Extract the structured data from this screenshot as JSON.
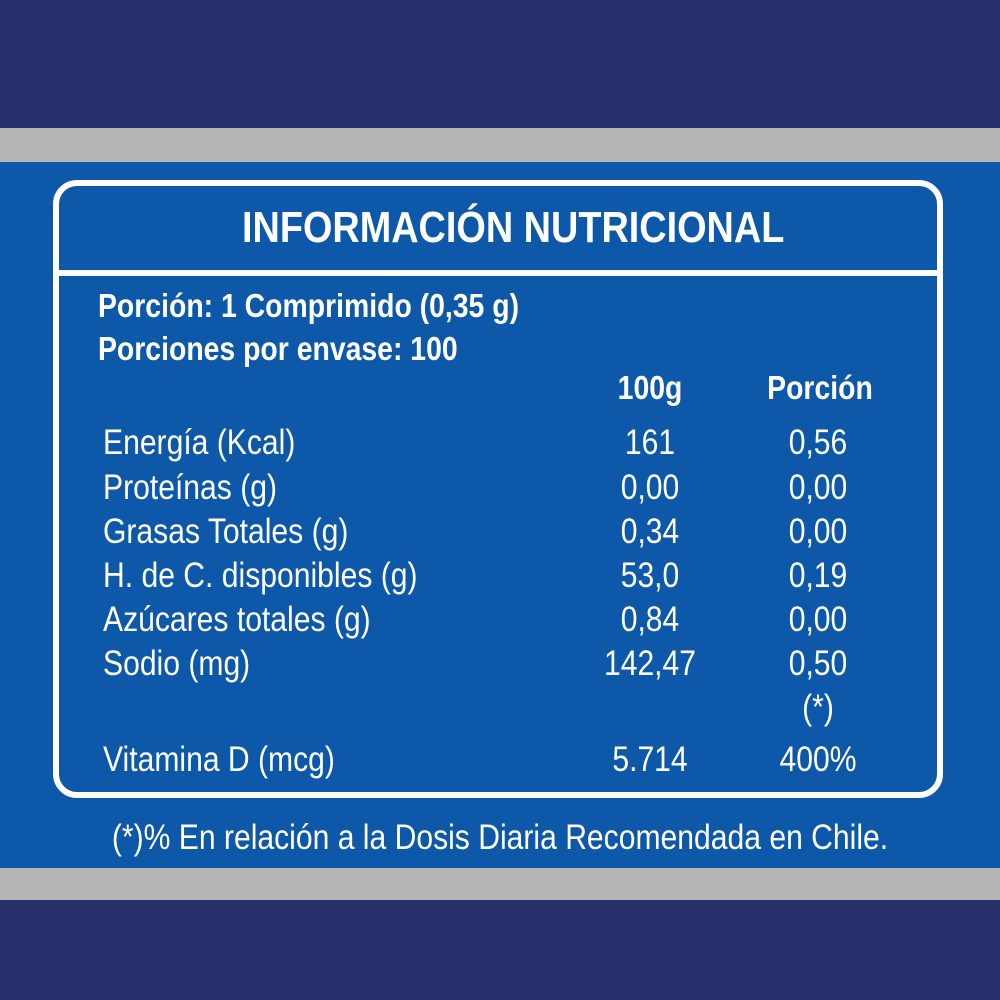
{
  "colors": {
    "navy": "#27306b",
    "grey": "#b5b5b5",
    "blue": "#0d58a8",
    "text": "#ffffff"
  },
  "title": "INFORMACIÓN NUTRICIONAL",
  "serving": {
    "portion": "Porción: 1 Comprimido (0,35 g)",
    "servings_per_package": "Porciones por envase: 100"
  },
  "columns": [
    "100g",
    "Porción"
  ],
  "rows": [
    {
      "name": "Energía (Kcal)",
      "per100": "161",
      "portion": "0,56"
    },
    {
      "name": "Proteínas (g)",
      "per100": "0,00",
      "portion": "0,00"
    },
    {
      "name": "Grasas Totales (g)",
      "per100": "0,34",
      "portion": "0,00"
    },
    {
      "name": "H. de C. disponibles (g)",
      "per100": "53,0",
      "portion": "0,19"
    },
    {
      "name": "Azúcares totales (g)",
      "per100": "0,84",
      "portion": "0,00"
    },
    {
      "name": "Sodio (mg)",
      "per100": "142,47",
      "portion": "0,50"
    },
    {
      "name": "Vitamina D (mcg)",
      "per100": "5.714",
      "portion": "400%",
      "portion_note": "(*)"
    }
  ],
  "footnote": "(*)% En relación a la Dosis Diaria Recomendada en Chile."
}
